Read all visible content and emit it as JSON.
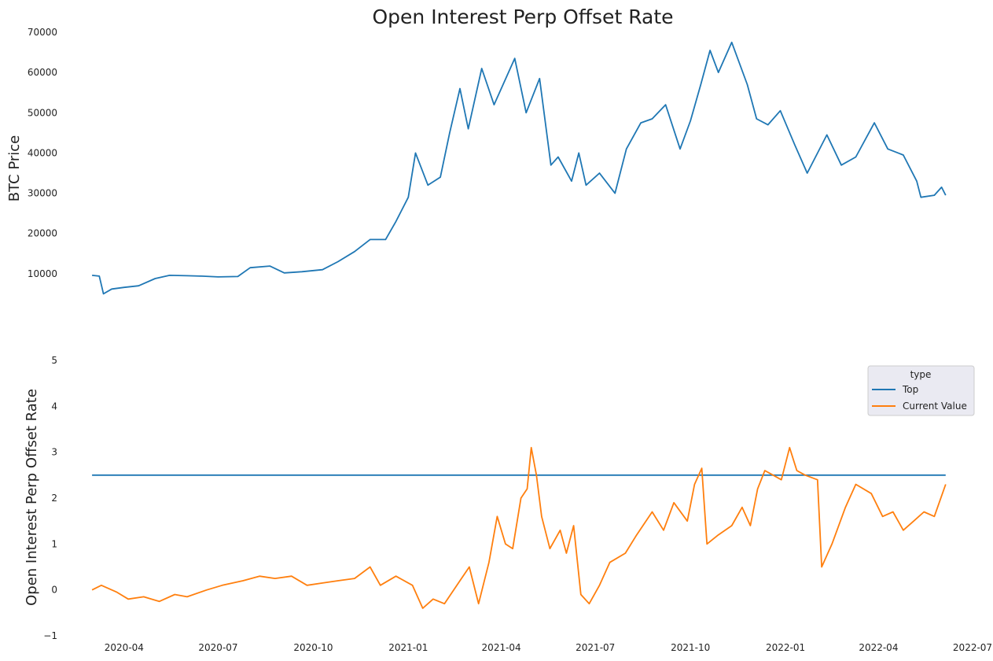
{
  "title": "Open Interest Perp Offset Rate",
  "chart_data": [
    {
      "type": "line",
      "ylabel": "BTC  Price",
      "ylim": [
        0,
        70000
      ],
      "yticks": [
        10000,
        20000,
        30000,
        40000,
        50000,
        60000,
        70000
      ],
      "xlim": [
        "2020-02-01",
        "2022-07-01"
      ],
      "grid": false,
      "series": [
        {
          "color": "#1f77b4",
          "points": [
            [
              "2020-03-01",
              9600
            ],
            [
              "2020-03-08",
              9400
            ],
            [
              "2020-03-12",
              5000
            ],
            [
              "2020-03-20",
              6200
            ],
            [
              "2020-04-01",
              6600
            ],
            [
              "2020-04-15",
              7000
            ],
            [
              "2020-05-01",
              8800
            ],
            [
              "2020-05-15",
              9600
            ],
            [
              "2020-06-01",
              9500
            ],
            [
              "2020-06-15",
              9400
            ],
            [
              "2020-07-01",
              9200
            ],
            [
              "2020-07-20",
              9300
            ],
            [
              "2020-08-01",
              11500
            ],
            [
              "2020-08-20",
              11900
            ],
            [
              "2020-09-03",
              10200
            ],
            [
              "2020-09-20",
              10500
            ],
            [
              "2020-10-10",
              11000
            ],
            [
              "2020-10-25",
              13000
            ],
            [
              "2020-11-10",
              15500
            ],
            [
              "2020-11-25",
              18500
            ],
            [
              "2020-12-10",
              18500
            ],
            [
              "2020-12-20",
              23000
            ],
            [
              "2021-01-01",
              29000
            ],
            [
              "2021-01-08",
              40000
            ],
            [
              "2021-01-20",
              32000
            ],
            [
              "2021-02-01",
              34000
            ],
            [
              "2021-02-10",
              45000
            ],
            [
              "2021-02-20",
              56000
            ],
            [
              "2021-02-28",
              46000
            ],
            [
              "2021-03-13",
              61000
            ],
            [
              "2021-03-25",
              52000
            ],
            [
              "2021-04-14",
              63500
            ],
            [
              "2021-04-25",
              50000
            ],
            [
              "2021-05-08",
              58500
            ],
            [
              "2021-05-19",
              37000
            ],
            [
              "2021-05-26",
              39000
            ],
            [
              "2021-06-08",
              33000
            ],
            [
              "2021-06-15",
              40000
            ],
            [
              "2021-06-22",
              32000
            ],
            [
              "2021-07-05",
              35000
            ],
            [
              "2021-07-20",
              30000
            ],
            [
              "2021-07-31",
              41000
            ],
            [
              "2021-08-14",
              47500
            ],
            [
              "2021-08-25",
              48500
            ],
            [
              "2021-09-07",
              52000
            ],
            [
              "2021-09-21",
              41000
            ],
            [
              "2021-10-01",
              48000
            ],
            [
              "2021-10-11",
              57000
            ],
            [
              "2021-10-20",
              65500
            ],
            [
              "2021-10-28",
              60000
            ],
            [
              "2021-11-10",
              67500
            ],
            [
              "2021-11-25",
              57000
            ],
            [
              "2021-12-04",
              48500
            ],
            [
              "2021-12-15",
              47000
            ],
            [
              "2021-12-27",
              50500
            ],
            [
              "2022-01-10",
              42000
            ],
            [
              "2022-01-22",
              35000
            ],
            [
              "2022-02-10",
              44500
            ],
            [
              "2022-02-24",
              37000
            ],
            [
              "2022-03-10",
              39000
            ],
            [
              "2022-03-28",
              47500
            ],
            [
              "2022-04-10",
              41000
            ],
            [
              "2022-04-25",
              39500
            ],
            [
              "2022-05-08",
              33000
            ],
            [
              "2022-05-12",
              29000
            ],
            [
              "2022-05-25",
              29500
            ],
            [
              "2022-06-01",
              31500
            ],
            [
              "2022-06-05",
              29500
            ]
          ]
        }
      ]
    },
    {
      "type": "line",
      "ylabel": "Open Interest Perp Offset Rate",
      "ylim": [
        -1,
        5
      ],
      "yticks": [
        -1,
        0,
        1,
        2,
        3,
        4,
        5
      ],
      "xlim": [
        "2020-02-01",
        "2022-07-01"
      ],
      "xticks": [
        "2020-04",
        "2020-07",
        "2020-10",
        "2021-01",
        "2021-04",
        "2021-07",
        "2021-10",
        "2022-01",
        "2022-04",
        "2022-07"
      ],
      "grid": false,
      "legend": {
        "title": "type",
        "placement": "upper-right"
      },
      "series": [
        {
          "name": "Top",
          "color": "#1f77b4",
          "points": [
            [
              "2020-03-01",
              2.5
            ],
            [
              "2022-06-05",
              2.5
            ]
          ]
        },
        {
          "name": "Current Value",
          "color": "#ff7f0e",
          "points": [
            [
              "2020-03-01",
              0.0
            ],
            [
              "2020-03-10",
              0.1
            ],
            [
              "2020-03-25",
              -0.05
            ],
            [
              "2020-04-05",
              -0.2
            ],
            [
              "2020-04-20",
              -0.15
            ],
            [
              "2020-05-05",
              -0.25
            ],
            [
              "2020-05-20",
              -0.1
            ],
            [
              "2020-06-01",
              -0.15
            ],
            [
              "2020-06-20",
              0.0
            ],
            [
              "2020-07-05",
              0.1
            ],
            [
              "2020-07-25",
              0.2
            ],
            [
              "2020-08-10",
              0.3
            ],
            [
              "2020-08-25",
              0.25
            ],
            [
              "2020-09-10",
              0.3
            ],
            [
              "2020-09-25",
              0.1
            ],
            [
              "2020-10-10",
              0.15
            ],
            [
              "2020-10-25",
              0.2
            ],
            [
              "2020-11-10",
              0.25
            ],
            [
              "2020-11-25",
              0.5
            ],
            [
              "2020-12-05",
              0.1
            ],
            [
              "2020-12-20",
              0.3
            ],
            [
              "2021-01-05",
              0.1
            ],
            [
              "2021-01-15",
              -0.4
            ],
            [
              "2021-01-25",
              -0.2
            ],
            [
              "2021-02-05",
              -0.3
            ],
            [
              "2021-02-20",
              0.2
            ],
            [
              "2021-03-01",
              0.5
            ],
            [
              "2021-03-10",
              -0.3
            ],
            [
              "2021-03-20",
              0.6
            ],
            [
              "2021-03-28",
              1.6
            ],
            [
              "2021-04-05",
              1.0
            ],
            [
              "2021-04-12",
              0.9
            ],
            [
              "2021-04-20",
              2.0
            ],
            [
              "2021-04-26",
              2.2
            ],
            [
              "2021-04-30",
              3.1
            ],
            [
              "2021-05-05",
              2.5
            ],
            [
              "2021-05-10",
              1.6
            ],
            [
              "2021-05-18",
              0.9
            ],
            [
              "2021-05-28",
              1.3
            ],
            [
              "2021-06-03",
              0.8
            ],
            [
              "2021-06-10",
              1.4
            ],
            [
              "2021-06-17",
              -0.1
            ],
            [
              "2021-06-25",
              -0.3
            ],
            [
              "2021-07-05",
              0.1
            ],
            [
              "2021-07-15",
              0.6
            ],
            [
              "2021-07-30",
              0.8
            ],
            [
              "2021-08-10",
              1.2
            ],
            [
              "2021-08-25",
              1.7
            ],
            [
              "2021-09-05",
              1.3
            ],
            [
              "2021-09-15",
              1.9
            ],
            [
              "2021-09-28",
              1.5
            ],
            [
              "2021-10-05",
              2.3
            ],
            [
              "2021-10-12",
              2.65
            ],
            [
              "2021-10-17",
              1.0
            ],
            [
              "2021-10-28",
              1.2
            ],
            [
              "2021-11-10",
              1.4
            ],
            [
              "2021-11-20",
              1.8
            ],
            [
              "2021-11-28",
              1.4
            ],
            [
              "2021-12-05",
              2.2
            ],
            [
              "2021-12-12",
              2.6
            ],
            [
              "2021-12-20",
              2.5
            ],
            [
              "2021-12-28",
              2.4
            ],
            [
              "2022-01-05",
              3.1
            ],
            [
              "2022-01-12",
              2.6
            ],
            [
              "2022-01-20",
              2.5
            ],
            [
              "2022-02-01",
              2.4
            ],
            [
              "2022-02-05",
              0.5
            ],
            [
              "2022-02-15",
              1.0
            ],
            [
              "2022-02-28",
              1.8
            ],
            [
              "2022-03-10",
              2.3
            ],
            [
              "2022-03-25",
              2.1
            ],
            [
              "2022-04-05",
              1.6
            ],
            [
              "2022-04-15",
              1.7
            ],
            [
              "2022-04-25",
              1.3
            ],
            [
              "2022-05-05",
              1.5
            ],
            [
              "2022-05-15",
              1.7
            ],
            [
              "2022-05-25",
              1.6
            ],
            [
              "2022-06-05",
              2.3
            ]
          ]
        }
      ]
    }
  ]
}
